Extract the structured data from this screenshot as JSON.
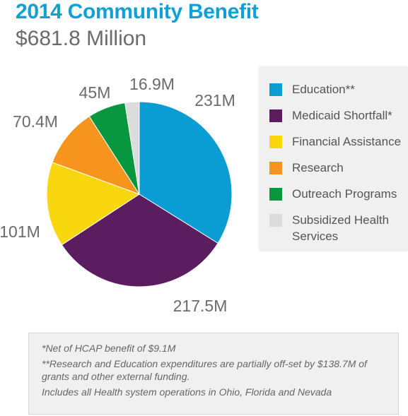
{
  "header": {
    "title": "2014 Community Benefit",
    "subtitle": "$681.8 Million"
  },
  "chart_data": {
    "type": "pie",
    "categories": [
      "Education**",
      "Medicaid Shortfall*",
      "Financial Assistance",
      "Research",
      "Outreach Programs",
      "Subsidized Health Services"
    ],
    "values": [
      231,
      217.5,
      101,
      70.4,
      45,
      16.9
    ],
    "data_labels": [
      "231M",
      "217.5M",
      "101M",
      "70.4M",
      "45M",
      "16.9M"
    ],
    "colors": [
      "#0a9dd4",
      "#5b1d5f",
      "#f8d70f",
      "#f6941d",
      "#08973f",
      "#dcdcdc"
    ],
    "legend_position": "right"
  },
  "legend": {
    "items": [
      {
        "label": "Education**",
        "color": "#0a9dd4"
      },
      {
        "label": "Medicaid Shortfall*",
        "color": "#5b1d5f"
      },
      {
        "label": "Financial Assistance",
        "color": "#f8d70f"
      },
      {
        "label": "Research",
        "color": "#f6941d"
      },
      {
        "label": "Outreach Programs",
        "color": "#08973f"
      },
      {
        "label": "Subsidized Health Services",
        "color": "#dcdcdc"
      }
    ]
  },
  "notes": [
    "*Net of HCAP benefit of $9.1M",
    "**Research and Education expenditures are partially off-set by $138.7M of grants and other external funding.",
    "Includes all Health system operations in Ohio, Florida and Nevada"
  ]
}
